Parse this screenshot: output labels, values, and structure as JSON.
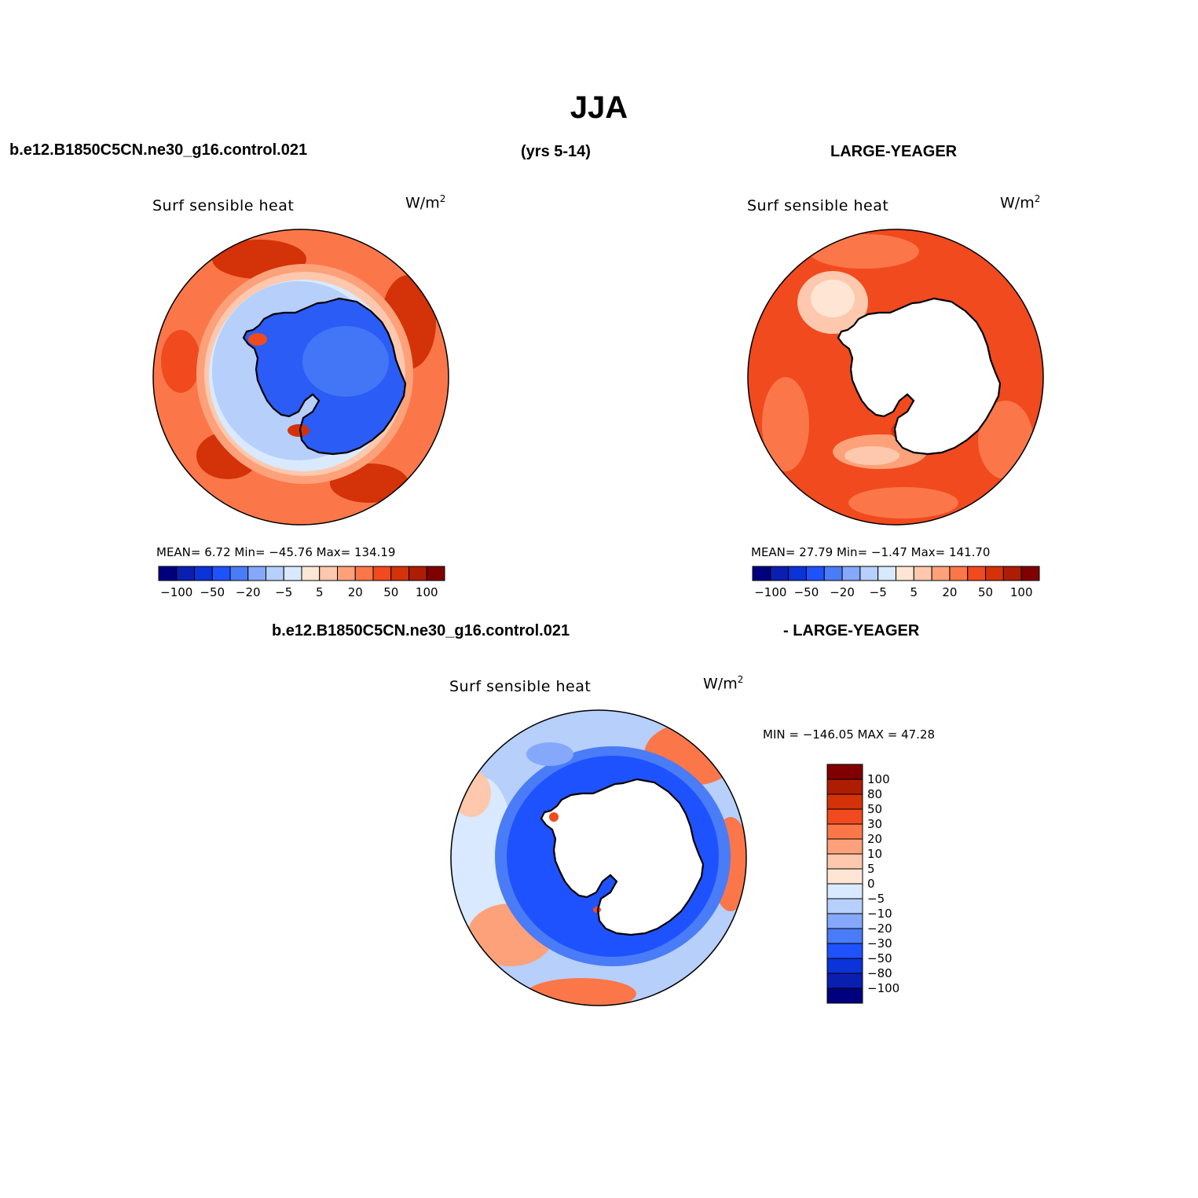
{
  "main_title": "JJA",
  "case1": "b.e12.B1850C5CN.ne30_g16.control.021",
  "years": "(yrs 5-14)",
  "case2": "LARGE-YEAGER",
  "diff_case1": "b.e12.B1850C5CN.ne30_g16.control.021",
  "diff_case2": "- LARGE-YEAGER",
  "panels": [
    {
      "title": "Surf  sensible  heat",
      "units": "W/m",
      "units_sup": "2",
      "stats": "MEAN=    6.72   Min= −45.76    Max=  134.19"
    },
    {
      "title": "Surf  sensible  heat",
      "units": "W/m",
      "units_sup": "2",
      "stats": "MEAN=   27.79    Min=   −1.47    Max= 141.70"
    },
    {
      "title": "Surf  sensible  heat",
      "units": "W/m",
      "units_sup": "2",
      "stats": "MIN = −146.05  MAX =   47.28"
    }
  ],
  "colorbar_h": {
    "labels": [
      "−100",
      "−50",
      "−20",
      "−5",
      "5",
      "20",
      "50",
      "100"
    ],
    "colors": [
      "#00007f",
      "#0a1fb0",
      "#0a33d8",
      "#1f52ff",
      "#4a7cf7",
      "#85a8fa",
      "#b6cffb",
      "#d9e9ff",
      "#ffe6d4",
      "#fdc8ad",
      "#fda17a",
      "#fb774a",
      "#f04a1e",
      "#d43208",
      "#ad1d04",
      "#800000"
    ]
  },
  "colorbar_v": {
    "labels": [
      "100",
      "80",
      "50",
      "30",
      "20",
      "10",
      "5",
      "0",
      "−5",
      "−10",
      "−20",
      "−30",
      "−50",
      "−80",
      "−100"
    ],
    "colors": [
      "#800000",
      "#ad1d04",
      "#d43208",
      "#f04a1e",
      "#fb774a",
      "#fda17a",
      "#fdc8ad",
      "#ffe6d4",
      "#d9e9ff",
      "#b6cffb",
      "#85a8fa",
      "#4a7cf7",
      "#1f52ff",
      "#0a33d8",
      "#0a1fb0",
      "#00007f"
    ]
  },
  "palette": {
    "land_blue": "#2b5cf5",
    "land_white": "#ffffff",
    "warm_light": "#fdc8ad",
    "warm_mid": "#fb774a",
    "warm_dark": "#d43208",
    "cool_light": "#b6cffb",
    "cool_mid": "#4a7cf7"
  }
}
